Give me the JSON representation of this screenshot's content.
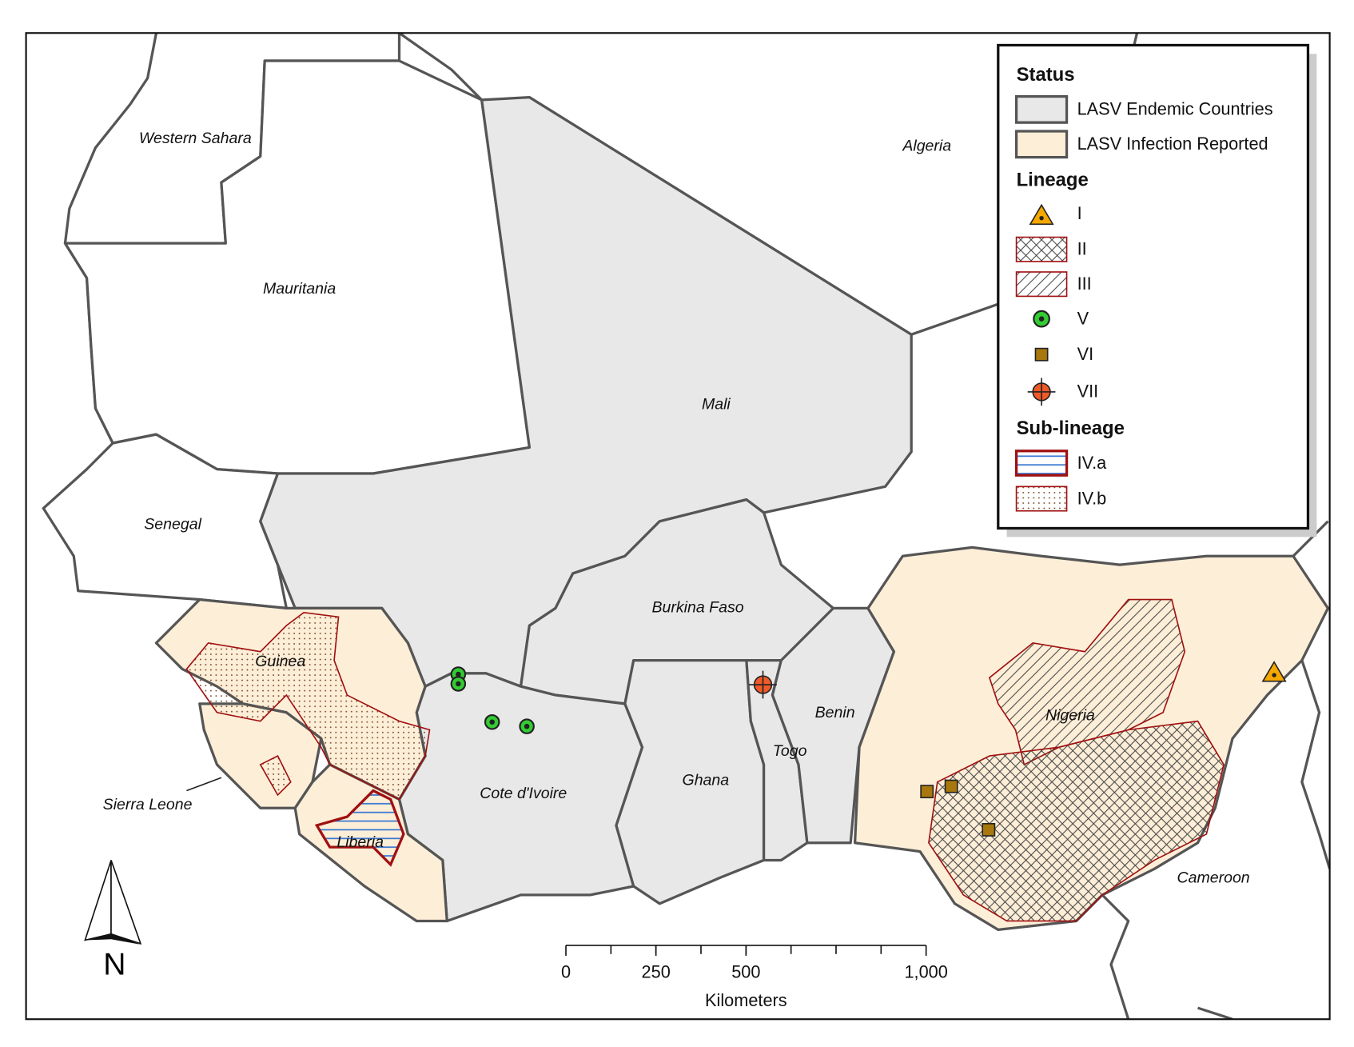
{
  "map": {
    "countries": [
      "Western Sahara",
      "Algeria",
      "Mauritania",
      "Mali",
      "Senegal",
      "Guinea",
      "Burkina Faso",
      "Benin",
      "Togo",
      "Nigeria",
      "Ghana",
      "Cote d'Ivoire",
      "Sierra Leone",
      "Liberia",
      "Cameroon"
    ],
    "legend": {
      "status_title": "Status",
      "status": [
        "LASV Endemic Countries",
        "LASV Infection Reported"
      ],
      "lineage_title": "Lineage",
      "lineages": [
        "I",
        "II",
        "III",
        "V",
        "VI",
        "VII"
      ],
      "sublineage_title": "Sub-lineage",
      "sublineages": [
        "IV.a",
        "IV.b"
      ]
    },
    "scale_bar": {
      "ticks": [
        0,
        250,
        500,
        {
          "value": 1000,
          "label": "1,000"
        }
      ],
      "unit": "Kilometers"
    },
    "north": "N"
  }
}
